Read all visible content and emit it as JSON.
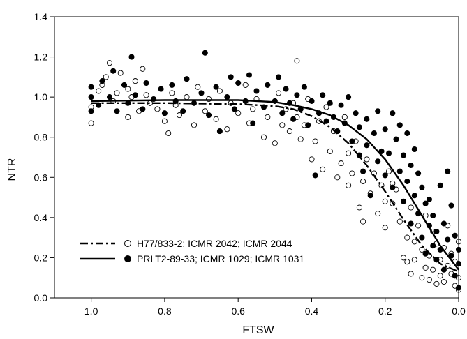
{
  "chart_data": {
    "type": "scatter",
    "title": "",
    "xlabel": "FTSW",
    "ylabel": "NTR",
    "xlim": [
      1.1,
      0.0
    ],
    "ylim": [
      0.0,
      1.4
    ],
    "x_reversed": true,
    "x_ticks": [
      1.0,
      0.8,
      0.6,
      0.4,
      0.2,
      0.0
    ],
    "x_tick_labels": [
      "1.0",
      "0.8",
      "0.6",
      "0.4",
      "0.2",
      "0.0"
    ],
    "y_ticks": [
      0.0,
      0.2,
      0.4,
      0.6,
      0.8,
      1.0,
      1.2,
      1.4
    ],
    "y_tick_labels": [
      "0.0",
      "0.2",
      "0.4",
      "0.6",
      "0.8",
      "1.0",
      "1.2",
      "1.4"
    ],
    "grid": false,
    "legend_position": "bottom-left",
    "series": [
      {
        "name": "H77/833-2; ICMR 2042; ICMR 2044",
        "marker": "open-circle",
        "line_style": "dash-dot",
        "color": "#000000",
        "fit_line": [
          [
            1.0,
            0.97
          ],
          [
            0.8,
            0.97
          ],
          [
            0.6,
            0.965
          ],
          [
            0.5,
            0.955
          ],
          [
            0.45,
            0.94
          ],
          [
            0.4,
            0.905
          ],
          [
            0.35,
            0.85
          ],
          [
            0.3,
            0.77
          ],
          [
            0.25,
            0.66
          ],
          [
            0.2,
            0.53
          ],
          [
            0.15,
            0.39
          ],
          [
            0.1,
            0.26
          ],
          [
            0.05,
            0.17
          ],
          [
            0.0,
            0.13
          ]
        ],
        "points": [
          [
            1.0,
            0.87
          ],
          [
            1.0,
            0.95
          ],
          [
            0.98,
            1.03
          ],
          [
            0.97,
            1.06
          ],
          [
            0.96,
            1.1
          ],
          [
            0.95,
            1.17
          ],
          [
            0.94,
            0.98
          ],
          [
            0.93,
            1.02
          ],
          [
            0.92,
            1.12
          ],
          [
            0.9,
            1.04
          ],
          [
            0.9,
            0.9
          ],
          [
            0.89,
            1.0
          ],
          [
            0.88,
            1.08
          ],
          [
            0.87,
            0.93
          ],
          [
            0.86,
            1.14
          ],
          [
            0.85,
            1.01
          ],
          [
            0.84,
            0.97
          ],
          [
            0.82,
            0.94
          ],
          [
            0.8,
            0.88
          ],
          [
            0.79,
            0.82
          ],
          [
            0.78,
            1.02
          ],
          [
            0.77,
            0.96
          ],
          [
            0.76,
            0.91
          ],
          [
            0.74,
            1.0
          ],
          [
            0.72,
            0.86
          ],
          [
            0.71,
            1.05
          ],
          [
            0.69,
            0.93
          ],
          [
            0.68,
            0.99
          ],
          [
            0.66,
            0.89
          ],
          [
            0.65,
            1.03
          ],
          [
            0.63,
            0.84
          ],
          [
            0.62,
            0.97
          ],
          [
            0.6,
            0.92
          ],
          [
            0.58,
            1.06
          ],
          [
            0.57,
            0.87
          ],
          [
            0.56,
            0.94
          ],
          [
            0.55,
            0.99
          ],
          [
            0.53,
            0.8
          ],
          [
            0.52,
            0.9
          ],
          [
            0.5,
            0.77
          ],
          [
            0.49,
            1.02
          ],
          [
            0.48,
            0.86
          ],
          [
            0.47,
            0.94
          ],
          [
            0.46,
            0.83
          ],
          [
            0.45,
            0.97
          ],
          [
            0.44,
            1.18
          ],
          [
            0.44,
            0.9
          ],
          [
            0.43,
            0.79
          ],
          [
            0.42,
            0.86
          ],
          [
            0.41,
            0.99
          ],
          [
            0.4,
            0.69
          ],
          [
            0.39,
            0.78
          ],
          [
            0.38,
            0.88
          ],
          [
            0.37,
            0.64
          ],
          [
            0.36,
            0.95
          ],
          [
            0.35,
            0.73
          ],
          [
            0.34,
            0.83
          ],
          [
            0.33,
            0.6
          ],
          [
            0.32,
            0.67
          ],
          [
            0.31,
            0.9
          ],
          [
            0.3,
            0.56
          ],
          [
            0.3,
            0.72
          ],
          [
            0.29,
            0.62
          ],
          [
            0.28,
            0.78
          ],
          [
            0.27,
            0.45
          ],
          [
            0.26,
            0.58
          ],
          [
            0.26,
            0.38
          ],
          [
            0.25,
            0.69
          ],
          [
            0.24,
            0.52
          ],
          [
            0.23,
            0.62
          ],
          [
            0.22,
            0.42
          ],
          [
            0.21,
            0.56
          ],
          [
            0.2,
            0.35
          ],
          [
            0.2,
            0.48
          ],
          [
            0.19,
            0.63
          ],
          [
            0.18,
            0.47
          ],
          [
            0.18,
            0.57
          ],
          [
            0.17,
            0.54
          ],
          [
            0.16,
            0.38
          ],
          [
            0.15,
            0.2
          ],
          [
            0.14,
            0.18
          ],
          [
            0.14,
            0.3
          ],
          [
            0.13,
            0.45
          ],
          [
            0.13,
            0.12
          ],
          [
            0.12,
            0.28
          ],
          [
            0.12,
            0.19
          ],
          [
            0.11,
            0.36
          ],
          [
            0.1,
            0.1
          ],
          [
            0.1,
            0.24
          ],
          [
            0.09,
            0.15
          ],
          [
            0.09,
            0.41
          ],
          [
            0.08,
            0.21
          ],
          [
            0.08,
            0.09
          ],
          [
            0.07,
            0.33
          ],
          [
            0.07,
            0.14
          ],
          [
            0.06,
            0.27
          ],
          [
            0.06,
            0.07
          ],
          [
            0.05,
            0.19
          ],
          [
            0.05,
            0.11
          ],
          [
            0.04,
            0.25
          ],
          [
            0.04,
            0.08
          ],
          [
            0.03,
            0.16
          ],
          [
            0.03,
            0.36
          ],
          [
            0.02,
            0.12
          ],
          [
            0.02,
            0.22
          ],
          [
            0.01,
            0.06
          ],
          [
            0.01,
            0.18
          ],
          [
            0.0,
            0.1
          ],
          [
            0.0,
            0.28
          ],
          [
            0.0,
            0.04
          ]
        ]
      },
      {
        "name": "PRLT2-89-33; ICMR 1029; ICMR 1031",
        "marker": "filled-circle",
        "line_style": "solid",
        "color": "#000000",
        "fit_line": [
          [
            1.0,
            0.98
          ],
          [
            0.8,
            0.985
          ],
          [
            0.6,
            0.985
          ],
          [
            0.5,
            0.975
          ],
          [
            0.45,
            0.96
          ],
          [
            0.4,
            0.94
          ],
          [
            0.35,
            0.91
          ],
          [
            0.3,
            0.86
          ],
          [
            0.25,
            0.79
          ],
          [
            0.2,
            0.69
          ],
          [
            0.15,
            0.56
          ],
          [
            0.1,
            0.41
          ],
          [
            0.05,
            0.26
          ],
          [
            0.0,
            0.14
          ]
        ],
        "points": [
          [
            1.0,
            1.05
          ],
          [
            1.0,
            0.93
          ],
          [
            1.0,
            1.0
          ],
          [
            0.98,
            0.96
          ],
          [
            0.97,
            1.08
          ],
          [
            0.95,
            1.0
          ],
          [
            0.94,
            1.13
          ],
          [
            0.93,
            0.93
          ],
          [
            0.91,
            1.06
          ],
          [
            0.9,
            0.97
          ],
          [
            0.89,
            1.2
          ],
          [
            0.88,
            1.01
          ],
          [
            0.86,
            0.94
          ],
          [
            0.85,
            1.07
          ],
          [
            0.83,
            0.99
          ],
          [
            0.81,
            1.04
          ],
          [
            0.8,
            0.92
          ],
          [
            0.78,
            1.06
          ],
          [
            0.77,
            0.98
          ],
          [
            0.75,
            0.93
          ],
          [
            0.74,
            1.09
          ],
          [
            0.72,
            0.97
          ],
          [
            0.7,
            1.02
          ],
          [
            0.69,
            1.22
          ],
          [
            0.68,
            0.91
          ],
          [
            0.66,
            1.05
          ],
          [
            0.65,
            0.83
          ],
          [
            0.63,
            1.0
          ],
          [
            0.62,
            1.1
          ],
          [
            0.61,
            0.94
          ],
          [
            0.6,
            1.07
          ],
          [
            0.58,
            0.98
          ],
          [
            0.57,
            1.11
          ],
          [
            0.56,
            0.87
          ],
          [
            0.55,
            1.03
          ],
          [
            0.53,
            0.95
          ],
          [
            0.52,
            1.06
          ],
          [
            0.5,
            0.98
          ],
          [
            0.49,
            1.1
          ],
          [
            0.48,
            0.92
          ],
          [
            0.47,
            1.04
          ],
          [
            0.46,
            0.97
          ],
          [
            0.45,
            0.89
          ],
          [
            0.44,
            1.01
          ],
          [
            0.43,
            0.94
          ],
          [
            0.42,
            1.05
          ],
          [
            0.41,
            0.86
          ],
          [
            0.4,
            0.98
          ],
          [
            0.39,
            0.61
          ],
          [
            0.38,
            0.92
          ],
          [
            0.37,
            1.01
          ],
          [
            0.36,
            0.88
          ],
          [
            0.35,
            0.97
          ],
          [
            0.34,
            0.9
          ],
          [
            0.33,
            0.83
          ],
          [
            0.32,
            0.96
          ],
          [
            0.31,
            0.87
          ],
          [
            0.3,
            1.0
          ],
          [
            0.29,
            0.78
          ],
          [
            0.28,
            0.92
          ],
          [
            0.27,
            0.71
          ],
          [
            0.27,
            0.85
          ],
          [
            0.26,
            0.63
          ],
          [
            0.25,
            0.89
          ],
          [
            0.25,
            0.76
          ],
          [
            0.24,
            0.51
          ],
          [
            0.23,
            0.82
          ],
          [
            0.22,
            0.68
          ],
          [
            0.22,
            0.93
          ],
          [
            0.21,
            0.73
          ],
          [
            0.2,
            0.61
          ],
          [
            0.2,
            0.84
          ],
          [
            0.19,
            0.72
          ],
          [
            0.18,
            0.92
          ],
          [
            0.18,
            0.55
          ],
          [
            0.17,
            0.79
          ],
          [
            0.16,
            0.63
          ],
          [
            0.16,
            0.86
          ],
          [
            0.15,
            0.48
          ],
          [
            0.15,
            0.71
          ],
          [
            0.14,
            0.58
          ],
          [
            0.14,
            0.82
          ],
          [
            0.13,
            0.37
          ],
          [
            0.13,
            0.66
          ],
          [
            0.12,
            0.51
          ],
          [
            0.12,
            0.74
          ],
          [
            0.11,
            0.42
          ],
          [
            0.11,
            0.62
          ],
          [
            0.1,
            0.3
          ],
          [
            0.1,
            0.55
          ],
          [
            0.09,
            0.47
          ],
          [
            0.09,
            0.22
          ],
          [
            0.08,
            0.36
          ],
          [
            0.08,
            0.49
          ],
          [
            0.07,
            0.26
          ],
          [
            0.07,
            0.41
          ],
          [
            0.06,
            0.19
          ],
          [
            0.06,
            0.33
          ],
          [
            0.05,
            0.56
          ],
          [
            0.05,
            0.24
          ],
          [
            0.04,
            0.14
          ],
          [
            0.04,
            0.37
          ],
          [
            0.03,
            0.29
          ],
          [
            0.03,
            0.63
          ],
          [
            0.02,
            0.21
          ],
          [
            0.02,
            0.46
          ],
          [
            0.01,
            0.11
          ],
          [
            0.01,
            0.31
          ],
          [
            0.0,
            0.17
          ],
          [
            0.0,
            0.24
          ],
          [
            0.0,
            0.05
          ]
        ]
      }
    ]
  }
}
